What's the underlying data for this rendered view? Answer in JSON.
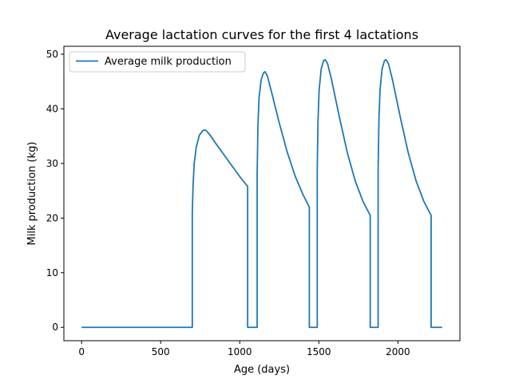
{
  "chart_data": {
    "type": "line",
    "title": "Average lactation curves for the first 4 lactations",
    "xlabel": "Age (days)",
    "ylabel": "Milk production (kg)",
    "xlim": [
      -112,
      2392
    ],
    "ylim": [
      -2.45,
      51.45
    ],
    "xticks": [
      0,
      500,
      1000,
      1500,
      2000
    ],
    "yticks": [
      0,
      10,
      20,
      30,
      40,
      50
    ],
    "grid": false,
    "legend_position": "top-left",
    "series": [
      {
        "name": "Average milk production",
        "color": "#1f77b4",
        "points": [
          [
            0,
            0
          ],
          [
            700,
            0
          ],
          [
            700,
            21
          ],
          [
            705,
            26
          ],
          [
            712,
            30
          ],
          [
            725,
            33
          ],
          [
            745,
            35.2
          ],
          [
            770,
            36.1
          ],
          [
            785,
            36.1
          ],
          [
            810,
            35.3
          ],
          [
            850,
            33.6
          ],
          [
            900,
            31.6
          ],
          [
            950,
            29.6
          ],
          [
            1000,
            27.6
          ],
          [
            1050,
            25.8
          ],
          [
            1050,
            0
          ],
          [
            1110,
            0
          ],
          [
            1110,
            28
          ],
          [
            1115,
            37
          ],
          [
            1122,
            42
          ],
          [
            1135,
            45.3
          ],
          [
            1150,
            46.6
          ],
          [
            1160,
            46.8
          ],
          [
            1175,
            46
          ],
          [
            1200,
            43.2
          ],
          [
            1250,
            37.4
          ],
          [
            1300,
            32.1
          ],
          [
            1350,
            27.7
          ],
          [
            1400,
            24.3
          ],
          [
            1440,
            22
          ],
          [
            1440,
            0
          ],
          [
            1490,
            0
          ],
          [
            1490,
            29
          ],
          [
            1495,
            38
          ],
          [
            1502,
            43.5
          ],
          [
            1515,
            47.3
          ],
          [
            1530,
            48.8
          ],
          [
            1540,
            49
          ],
          [
            1555,
            48.3
          ],
          [
            1580,
            45.4
          ],
          [
            1630,
            38.5
          ],
          [
            1680,
            32
          ],
          [
            1730,
            26.8
          ],
          [
            1780,
            23
          ],
          [
            1825,
            20.5
          ],
          [
            1825,
            0
          ],
          [
            1875,
            0
          ],
          [
            1875,
            29
          ],
          [
            1880,
            38
          ],
          [
            1887,
            43.5
          ],
          [
            1900,
            47.3
          ],
          [
            1915,
            48.8
          ],
          [
            1925,
            49
          ],
          [
            1940,
            48.3
          ],
          [
            1965,
            45.4
          ],
          [
            2015,
            38.5
          ],
          [
            2065,
            32
          ],
          [
            2115,
            26.8
          ],
          [
            2165,
            23
          ],
          [
            2210,
            20.5
          ],
          [
            2210,
            0
          ],
          [
            2280,
            0
          ]
        ]
      }
    ]
  }
}
